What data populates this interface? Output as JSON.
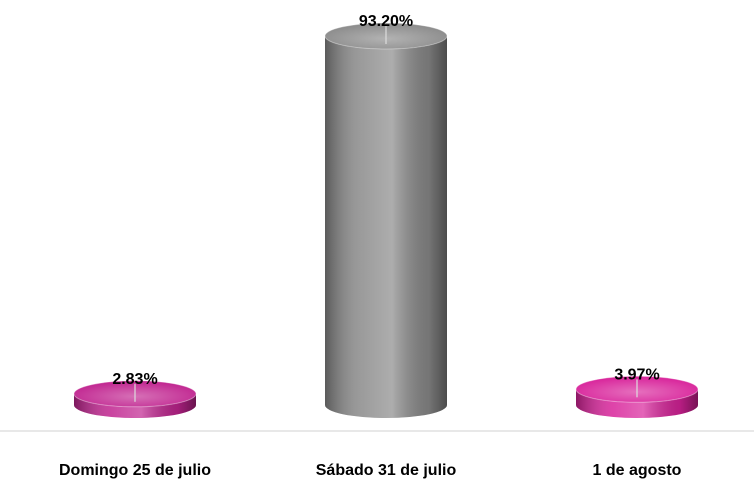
{
  "chart_data": {
    "type": "bar",
    "categories": [
      "Domingo 25 de julio",
      "Sábado 31 de julio",
      "1 de agosto"
    ],
    "values": [
      2.83,
      93.2,
      3.97
    ],
    "value_labels": [
      "2.83%",
      "93.20%",
      "3.97%"
    ],
    "colors": [
      "#c0238f",
      "#8a8a8a",
      "#d8229a"
    ]
  }
}
